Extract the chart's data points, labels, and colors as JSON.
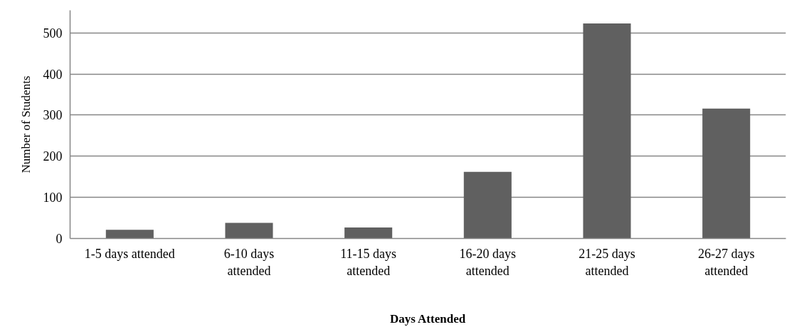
{
  "chart_data": {
    "type": "bar",
    "xlabel": "Days Attended",
    "ylabel": "Number of Students",
    "categories": [
      "1-5 days attended",
      "6-10 days attended",
      "11-15 days attended",
      "16-20 days attended",
      "21-25 days attended",
      "26-27 days attended"
    ],
    "values": [
      21,
      38,
      27,
      162,
      523,
      316
    ],
    "color": "#606060",
    "ylim": [
      0,
      555
    ],
    "yticks": [
      0,
      100,
      200,
      300,
      400,
      500
    ],
    "grid": "y"
  }
}
